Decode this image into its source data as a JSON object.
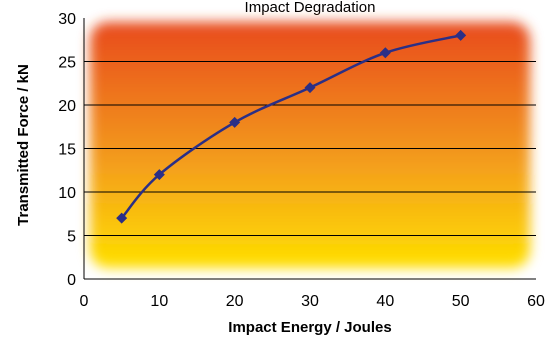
{
  "chart_data": {
    "type": "line",
    "title": "Impact Degradation",
    "xlabel": "Impact Energy / Joules",
    "ylabel": "Transmitted Force / kN",
    "xlim": [
      0,
      60
    ],
    "ylim": [
      0,
      30
    ],
    "x_ticks": [
      "0",
      "10",
      "20",
      "30",
      "40",
      "50",
      "60"
    ],
    "y_ticks": [
      "0",
      "5",
      "10",
      "15",
      "20",
      "25",
      "30"
    ],
    "grid": "horizontal",
    "series": [
      {
        "x": [
          5,
          10,
          20,
          30,
          40,
          50
        ],
        "y": [
          7,
          12,
          18,
          22,
          26,
          28
        ]
      }
    ],
    "colors": {
      "line": "#2b2f86",
      "marker": "#2b2f86",
      "gradient_top": "#e84a1f",
      "gradient_bottom": "#ffe000"
    }
  }
}
